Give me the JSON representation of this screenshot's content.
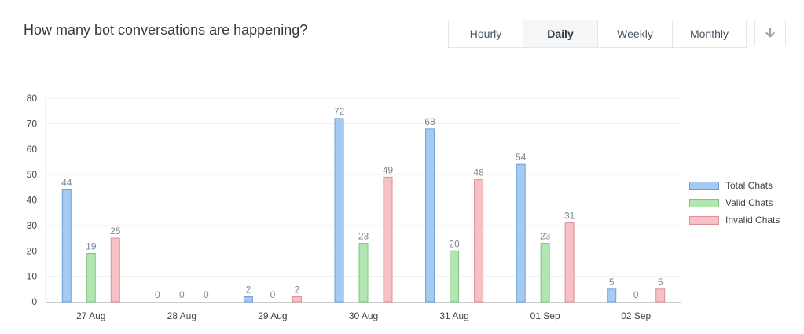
{
  "title": "How many bot conversations are happening?",
  "tabs": [
    {
      "label": "Hourly",
      "active": false
    },
    {
      "label": "Daily",
      "active": true
    },
    {
      "label": "Weekly",
      "active": false
    },
    {
      "label": "Monthly",
      "active": false
    }
  ],
  "download_icon": "arrow-down-icon",
  "chart_data": {
    "type": "bar",
    "categories": [
      "27 Aug",
      "28 Aug",
      "29 Aug",
      "30 Aug",
      "31 Aug",
      "01 Sep",
      "02 Sep"
    ],
    "series": [
      {
        "name": "Total Chats",
        "values": [
          44,
          0,
          2,
          72,
          68,
          54,
          5
        ],
        "fill": "#a3cbf3",
        "stroke": "#6f9fd0"
      },
      {
        "name": "Valid Chats",
        "values": [
          19,
          0,
          0,
          23,
          20,
          23,
          0
        ],
        "fill": "#b2e6b0",
        "stroke": "#82c57f"
      },
      {
        "name": "Invalid Chats",
        "values": [
          25,
          0,
          2,
          49,
          48,
          31,
          5
        ],
        "fill": "#f6c1c5",
        "stroke": "#dc8f96"
      }
    ],
    "title": "",
    "xlabel": "",
    "ylabel": "",
    "ylim": [
      0,
      80
    ],
    "yticks": [
      0,
      10,
      20,
      30,
      40,
      50,
      60,
      70,
      80
    ],
    "grid": true,
    "legend": "right",
    "data_labels": true
  }
}
